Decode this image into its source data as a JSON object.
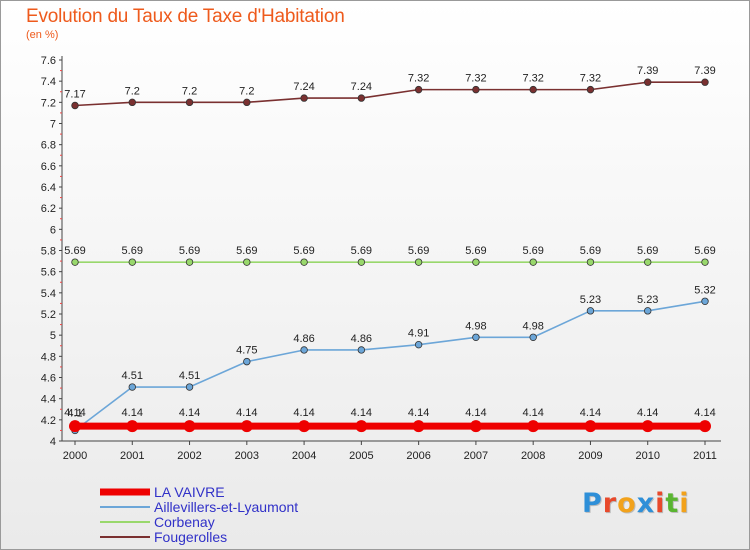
{
  "header": {
    "title": "Evolution du Taux de Taxe d'Habitation",
    "subtitle": "(en %)"
  },
  "logo": {
    "text": "Proxiti",
    "letter_colors": [
      "#2e8fd8",
      "#e8492b",
      "#f2a21b",
      "#2e8fd8",
      "#e8492b",
      "#5ab531",
      "#f2a21b"
    ]
  },
  "chart_data": {
    "type": "line",
    "title": "Evolution du Taux de Taxe d'Habitation",
    "ylabel": "(en %)",
    "xlabel": "",
    "x": [
      "2000",
      "2001",
      "2002",
      "2003",
      "2004",
      "2005",
      "2006",
      "2007",
      "2008",
      "2009",
      "2010",
      "2011"
    ],
    "ylim": [
      4,
      7.6
    ],
    "yticks": [
      "4",
      "4.2",
      "4.4",
      "4.6",
      "4.8",
      "5",
      "5.2",
      "5.4",
      "5.6",
      "5.8",
      "6",
      "6.2",
      "6.4",
      "6.6",
      "6.8",
      "7",
      "7.2",
      "7.4",
      "7.6"
    ],
    "grid": false,
    "legend_position": "bottom-left",
    "series": [
      {
        "name": "LA VAIVRE",
        "color": "#ee0000",
        "values": [
          4.14,
          4.14,
          4.14,
          4.14,
          4.14,
          4.14,
          4.14,
          4.14,
          4.14,
          4.14,
          4.14,
          4.14
        ],
        "labels": [
          "4.14",
          "4.14",
          "4.14",
          "4.14",
          "4.14",
          "4.14",
          "4.14",
          "4.14",
          "4.14",
          "4.14",
          "4.14",
          "4.14"
        ]
      },
      {
        "name": "Aillevillers-et-Lyaumont",
        "color": "#6ca6d8",
        "values": [
          4.1,
          4.51,
          4.51,
          4.75,
          4.86,
          4.86,
          4.91,
          4.98,
          4.98,
          5.23,
          5.23,
          5.32
        ],
        "labels": [
          "4.1",
          "4.51",
          "4.51",
          "4.75",
          "4.86",
          "4.86",
          "4.91",
          "4.98",
          "4.98",
          "5.23",
          "5.23",
          "5.32"
        ]
      },
      {
        "name": "Corbenay",
        "color": "#99d86c",
        "values": [
          5.69,
          5.69,
          5.69,
          5.69,
          5.69,
          5.69,
          5.69,
          5.69,
          5.69,
          5.69,
          5.69,
          5.69
        ],
        "labels": [
          "5.69",
          "5.69",
          "5.69",
          "5.69",
          "5.69",
          "5.69",
          "5.69",
          "5.69",
          "5.69",
          "5.69",
          "5.69",
          "5.69"
        ]
      },
      {
        "name": "Fougerolles",
        "color": "#7a3030",
        "values": [
          7.17,
          7.2,
          7.2,
          7.2,
          7.24,
          7.24,
          7.32,
          7.32,
          7.32,
          7.32,
          7.39,
          7.39
        ],
        "labels": [
          "7.17",
          "7.2",
          "7.2",
          "7.2",
          "7.24",
          "7.24",
          "7.32",
          "7.32",
          "7.32",
          "7.32",
          "7.39",
          "7.39"
        ]
      }
    ]
  }
}
